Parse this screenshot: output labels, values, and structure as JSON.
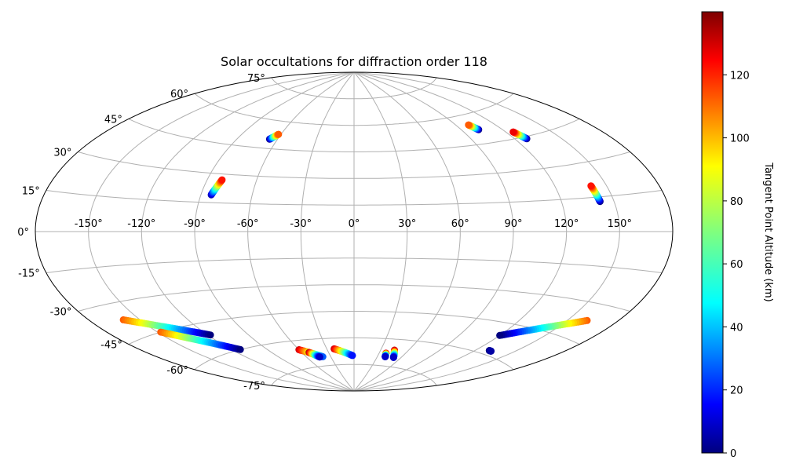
{
  "chart_data": {
    "type": "scatter",
    "title": "Solar occultations for diffraction order 118",
    "projection": "aitoff",
    "grid": true,
    "lon_ticks": [
      "-150°",
      "-120°",
      "-90°",
      "-60°",
      "-30°",
      "0°",
      "30°",
      "60°",
      "90°",
      "120°",
      "150°"
    ],
    "lat_ticks": [
      "75°",
      "60°",
      "45°",
      "30°",
      "15°",
      "0°",
      "-15°",
      "-30°",
      "-45°",
      "-60°",
      "-75°"
    ],
    "colorbar": {
      "label": "Tangent Point Altitude (km)",
      "colormap": "jet",
      "range": [
        0,
        140
      ],
      "ticks": [
        "0",
        "20",
        "40",
        "60",
        "80",
        "100",
        "120"
      ]
    },
    "series": [
      {
        "lon_start": -66,
        "lat_start": 50,
        "lon_end": -62,
        "lat_end": 53,
        "alt_start": 0,
        "alt_end": 110
      },
      {
        "lon_start": -84,
        "lat_start": 19,
        "lon_end": -81,
        "lat_end": 27,
        "alt_start": 5,
        "alt_end": 120
      },
      {
        "lon_start": 103,
        "lat_start": 52,
        "lon_end": 100,
        "lat_end": 55,
        "alt_start": 0,
        "alt_end": 110
      },
      {
        "lon_start": 128,
        "lat_start": 44,
        "lon_end": 125,
        "lat_end": 48,
        "alt_start": 0,
        "alt_end": 125
      },
      {
        "lon_start": 142,
        "lat_start": 13,
        "lon_end": 141,
        "lat_end": 20,
        "alt_start": 0,
        "alt_end": 120
      },
      {
        "lon_start": -160,
        "lat_start": -37,
        "lon_end": -118,
        "lat_end": -51,
        "alt_start": 110,
        "alt_end": 0
      },
      {
        "lon_start": -148,
        "lat_start": -45,
        "lon_end": -113,
        "lat_end": -60,
        "alt_start": 110,
        "alt_end": 0
      },
      {
        "lon_start": -60,
        "lat_start": -65,
        "lon_end": -40,
        "lat_end": -70,
        "alt_start": 130,
        "alt_end": 30
      },
      {
        "lon_start": -52,
        "lat_start": -67,
        "lon_end": -44,
        "lat_end": -70,
        "alt_start": 135,
        "alt_end": 10
      },
      {
        "lon_start": -22,
        "lat_start": -66,
        "lon_end": -2,
        "lat_end": -70,
        "alt_start": 130,
        "alt_end": 20
      },
      {
        "lon_start": 38,
        "lat_start": -68,
        "lon_end": 40,
        "lat_end": -70,
        "alt_start": 130,
        "alt_end": 10
      },
      {
        "lon_start": 45,
        "lat_start": -66,
        "lon_end": 51,
        "lat_end": -70,
        "alt_start": 135,
        "alt_end": 10
      },
      {
        "lon_start": 162,
        "lat_start": -37,
        "lon_end": 120,
        "lat_end": -51,
        "alt_start": 110,
        "alt_end": 0
      },
      {
        "lon_start": 131,
        "lat_start": -58,
        "lon_end": 133,
        "lat_end": -58,
        "alt_start": 0,
        "alt_end": 5
      }
    ]
  }
}
